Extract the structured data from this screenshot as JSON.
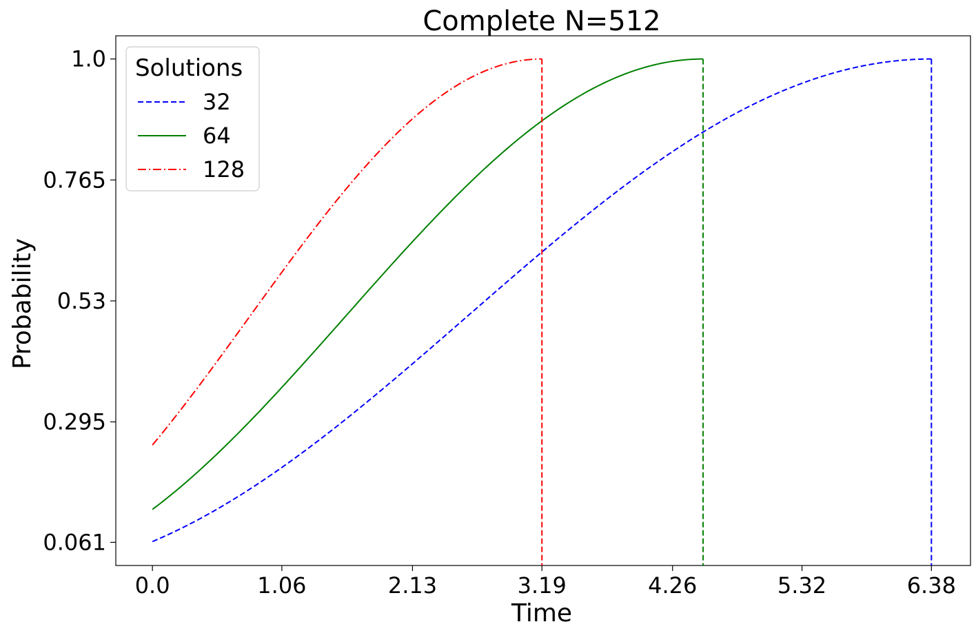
{
  "chart_data": {
    "type": "line",
    "title": "Complete N=512",
    "xlabel": "Time",
    "ylabel": "Probability",
    "xlim": [
      -0.3,
      6.7
    ],
    "ylim": [
      0.016,
      1.045
    ],
    "xticks": [
      0.0,
      1.06,
      2.13,
      3.19,
      4.26,
      5.32,
      6.38
    ],
    "xtick_labels": [
      "0.0",
      "1.06",
      "2.13",
      "3.19",
      "4.26",
      "5.32",
      "6.38"
    ],
    "yticks": [
      0.061,
      0.295,
      0.53,
      0.765,
      1.0
    ],
    "ytick_labels": [
      "0.061",
      "0.295",
      "0.53",
      "0.765",
      "1.0"
    ],
    "grid": false,
    "legend": {
      "title": "Solutions",
      "position": "top-left"
    },
    "series": [
      {
        "name": "32",
        "color": "#0000ff",
        "style": "dashed",
        "p0": 0.0625,
        "t_end": 6.38
      },
      {
        "name": "64",
        "color": "#008000",
        "style": "solid",
        "p0": 0.125,
        "t_end": 4.51
      },
      {
        "name": "128",
        "color": "#ff0000",
        "style": "dashdot",
        "p0": 0.25,
        "t_end": 3.19
      }
    ]
  }
}
